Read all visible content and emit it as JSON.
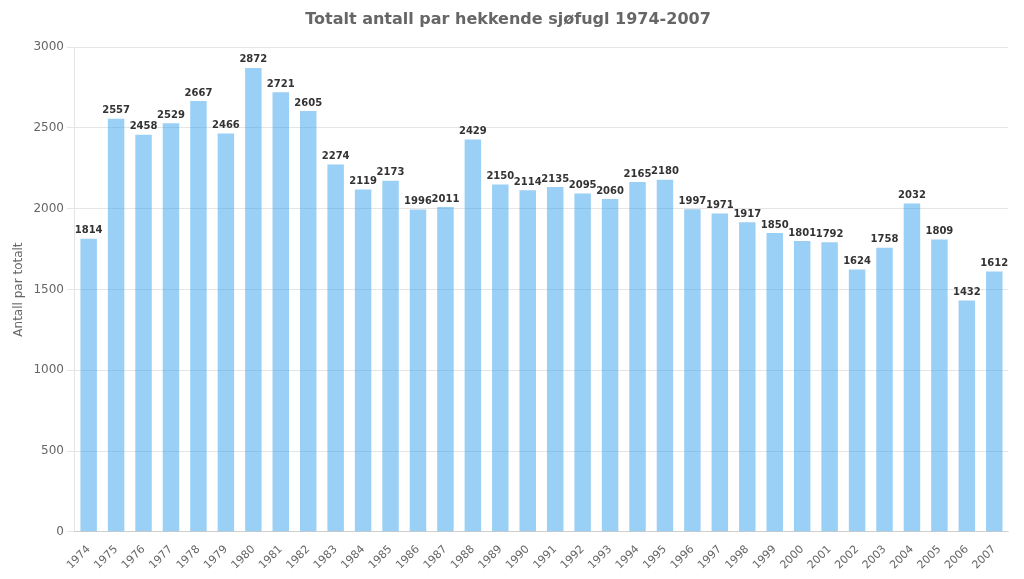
{
  "chart_data": {
    "type": "bar",
    "title": "Totalt antall par hekkende sjøfugl 1974-2007",
    "ylabel": "Antall par totalt",
    "categories": [
      "1974",
      "1975",
      "1976",
      "1977",
      "1978",
      "1979",
      "1980",
      "1981",
      "1982",
      "1983",
      "1984",
      "1985",
      "1986",
      "1987",
      "1988",
      "1989",
      "1990",
      "1991",
      "1992",
      "1993",
      "1994",
      "1995",
      "1996",
      "1997",
      "1998",
      "1999",
      "2000",
      "2001",
      "2002",
      "2003",
      "2004",
      "2005",
      "2006",
      "2007"
    ],
    "values": [
      1814,
      2557,
      2458,
      2529,
      2667,
      2466,
      2872,
      2721,
      2605,
      2274,
      2119,
      2173,
      1996,
      2011,
      2429,
      2150,
      2114,
      2135,
      2095,
      2060,
      2165,
      2180,
      1997,
      1971,
      1917,
      1850,
      1801,
      1792,
      1624,
      1758,
      2032,
      1809,
      1432,
      1612
    ],
    "ylim": [
      0,
      3000
    ],
    "yticks": [
      0,
      500,
      1000,
      1500,
      2000,
      2500,
      3000
    ],
    "grid": true,
    "data_labels": true
  }
}
